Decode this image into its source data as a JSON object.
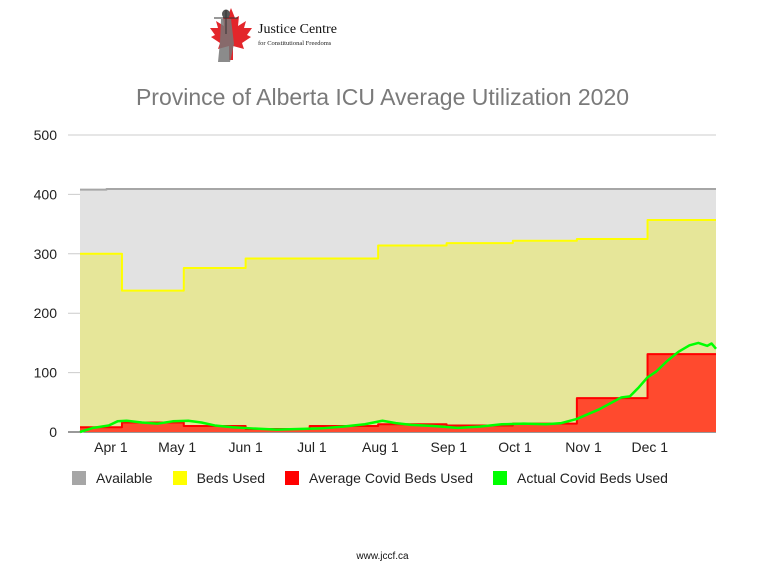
{
  "logo": {
    "name": "Justice Centre",
    "tagline": "for Constitutional Freedoms"
  },
  "footer": {
    "url": "www.jccf.ca"
  },
  "chart_data": {
    "type": "area",
    "title": "Province of Alberta ICU Average Utilization 2020",
    "xlabel": "",
    "ylabel": "",
    "ylim": [
      0,
      500
    ],
    "yticks": [
      0,
      100,
      200,
      300,
      400,
      500
    ],
    "xlim": [
      "2020-03-18",
      "2020-12-31"
    ],
    "x_ticks": [
      {
        "label": "Apr 1",
        "date": "2020-04-01"
      },
      {
        "label": "May 1",
        "date": "2020-05-01"
      },
      {
        "label": "Jun 1",
        "date": "2020-06-01"
      },
      {
        "label": "Jul 1",
        "date": "2020-07-01"
      },
      {
        "label": "Aug 1",
        "date": "2020-08-01"
      },
      {
        "label": "Sep 1",
        "date": "2020-09-01"
      },
      {
        "label": "Oct 1",
        "date": "2020-10-01"
      },
      {
        "label": "Nov 1",
        "date": "2020-11-01"
      },
      {
        "label": "Dec 1",
        "date": "2020-12-01"
      }
    ],
    "grid": true,
    "legend_position": "bottom",
    "series": [
      {
        "name": "Available",
        "color": "#a6a6a6",
        "fill": "#e2e2e2",
        "step": true,
        "points": [
          [
            "2020-03-18",
            408
          ],
          [
            "2020-03-30",
            409
          ],
          [
            "2020-12-31",
            409
          ]
        ]
      },
      {
        "name": "Beds Used",
        "color": "#ffff00",
        "fill": "#e6e699",
        "step": true,
        "points": [
          [
            "2020-03-18",
            300
          ],
          [
            "2020-04-06",
            238
          ],
          [
            "2020-05-04",
            276
          ],
          [
            "2020-06-01",
            292
          ],
          [
            "2020-07-31",
            314
          ],
          [
            "2020-08-31",
            318
          ],
          [
            "2020-09-30",
            322
          ],
          [
            "2020-10-29",
            325
          ],
          [
            "2020-11-30",
            357
          ],
          [
            "2020-12-31",
            357
          ]
        ]
      },
      {
        "name": "Average Covid Beds Used",
        "color": "#ff0000",
        "fill": "#ff4a2e",
        "step": true,
        "points": [
          [
            "2020-03-18",
            8
          ],
          [
            "2020-04-06",
            16
          ],
          [
            "2020-05-04",
            10
          ],
          [
            "2020-06-01",
            5
          ],
          [
            "2020-06-30",
            10
          ],
          [
            "2020-07-31",
            13
          ],
          [
            "2020-08-31",
            11
          ],
          [
            "2020-09-30",
            14
          ],
          [
            "2020-10-29",
            57
          ],
          [
            "2020-11-30",
            131
          ],
          [
            "2020-12-31",
            131
          ]
        ]
      },
      {
        "name": "Actual Covid Beds Used",
        "color": "#00ff00",
        "step": false,
        "points": [
          [
            "2020-03-18",
            0
          ],
          [
            "2020-03-24",
            7
          ],
          [
            "2020-03-31",
            11
          ],
          [
            "2020-04-04",
            18
          ],
          [
            "2020-04-08",
            19
          ],
          [
            "2020-04-15",
            16
          ],
          [
            "2020-04-22",
            14
          ],
          [
            "2020-04-29",
            18
          ],
          [
            "2020-05-06",
            19
          ],
          [
            "2020-05-12",
            16
          ],
          [
            "2020-05-18",
            11
          ],
          [
            "2020-05-26",
            8
          ],
          [
            "2020-06-04",
            6
          ],
          [
            "2020-06-15",
            4
          ],
          [
            "2020-06-25",
            5
          ],
          [
            "2020-07-05",
            6
          ],
          [
            "2020-07-15",
            9
          ],
          [
            "2020-07-25",
            13
          ],
          [
            "2020-08-02",
            19
          ],
          [
            "2020-08-08",
            15
          ],
          [
            "2020-08-15",
            12
          ],
          [
            "2020-08-25",
            10
          ],
          [
            "2020-09-05",
            7
          ],
          [
            "2020-09-15",
            9
          ],
          [
            "2020-09-25",
            13
          ],
          [
            "2020-10-05",
            14
          ],
          [
            "2020-10-15",
            13
          ],
          [
            "2020-10-22",
            15
          ],
          [
            "2020-10-29",
            22
          ],
          [
            "2020-11-03",
            30
          ],
          [
            "2020-11-08",
            38
          ],
          [
            "2020-11-13",
            48
          ],
          [
            "2020-11-18",
            58
          ],
          [
            "2020-11-22",
            60
          ],
          [
            "2020-11-26",
            75
          ],
          [
            "2020-11-30",
            92
          ],
          [
            "2020-12-04",
            102
          ],
          [
            "2020-12-09",
            120
          ],
          [
            "2020-12-14",
            135
          ],
          [
            "2020-12-19",
            146
          ],
          [
            "2020-12-23",
            150
          ],
          [
            "2020-12-27",
            145
          ],
          [
            "2020-12-29",
            149
          ],
          [
            "2020-12-31",
            140
          ]
        ]
      }
    ]
  }
}
